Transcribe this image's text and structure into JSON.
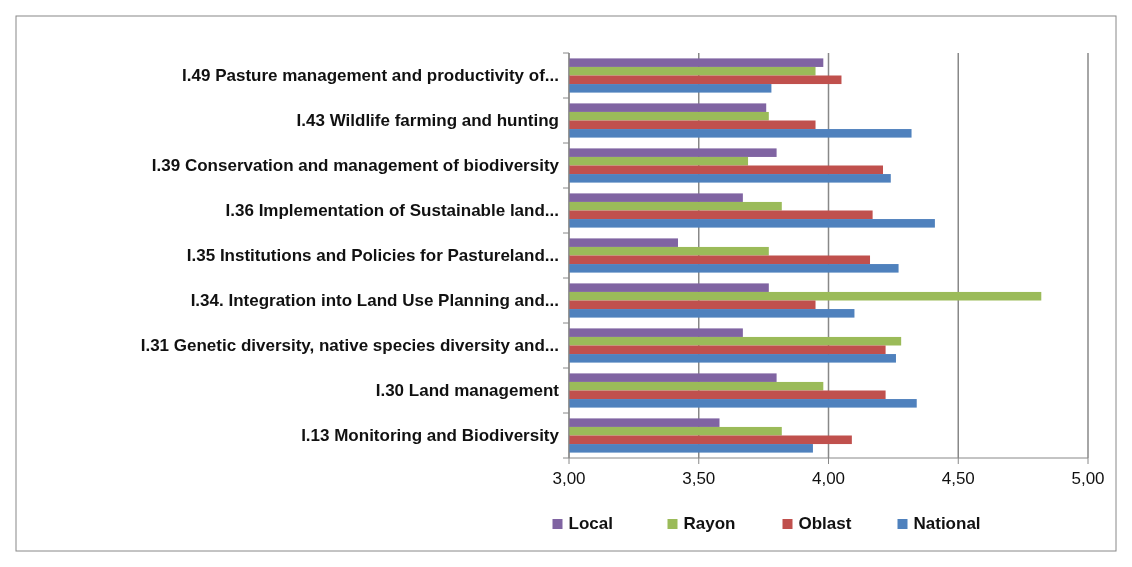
{
  "chart_data": {
    "type": "bar",
    "orientation": "horizontal",
    "categories": [
      "I.49 Pasture management and productivity of...",
      "I.43 Wildlife farming and hunting",
      "I.39 Conservation and management of biodiversity",
      "I.36 Implementation of Sustainable land...",
      "I.35 Institutions and Policies for Pastureland...",
      "I.34. Integration into Land Use Planning and...",
      "I.31 Genetic diversity, native species diversity and...",
      "I.30 Land management",
      "I.13  Monitoring and Biodiversity"
    ],
    "series": [
      {
        "name": "Local",
        "color": "#8064a2",
        "values": [
          3.98,
          3.76,
          3.8,
          3.67,
          3.42,
          3.77,
          3.67,
          3.8,
          3.58
        ]
      },
      {
        "name": "Rayon",
        "color": "#9bbb59",
        "values": [
          3.95,
          3.77,
          3.69,
          3.82,
          3.77,
          4.82,
          4.28,
          3.98,
          3.82
        ]
      },
      {
        "name": "Oblast",
        "color": "#c0504d",
        "values": [
          4.05,
          3.95,
          4.21,
          4.17,
          4.16,
          3.95,
          4.22,
          4.22,
          4.09
        ]
      },
      {
        "name": "National",
        "color": "#4f81bd",
        "values": [
          3.78,
          4.32,
          4.24,
          4.41,
          4.27,
          4.1,
          4.26,
          4.34,
          3.94
        ]
      }
    ],
    "xlim": [
      3,
      5
    ],
    "xticks": [
      {
        "value": 3,
        "label": "3,00"
      },
      {
        "value": 3.5,
        "label": "3,50"
      },
      {
        "value": 4,
        "label": "4,00"
      },
      {
        "value": 4.5,
        "label": "4,50"
      },
      {
        "value": 5,
        "label": "5,00"
      }
    ],
    "grid": "x",
    "legend": "bottom"
  }
}
